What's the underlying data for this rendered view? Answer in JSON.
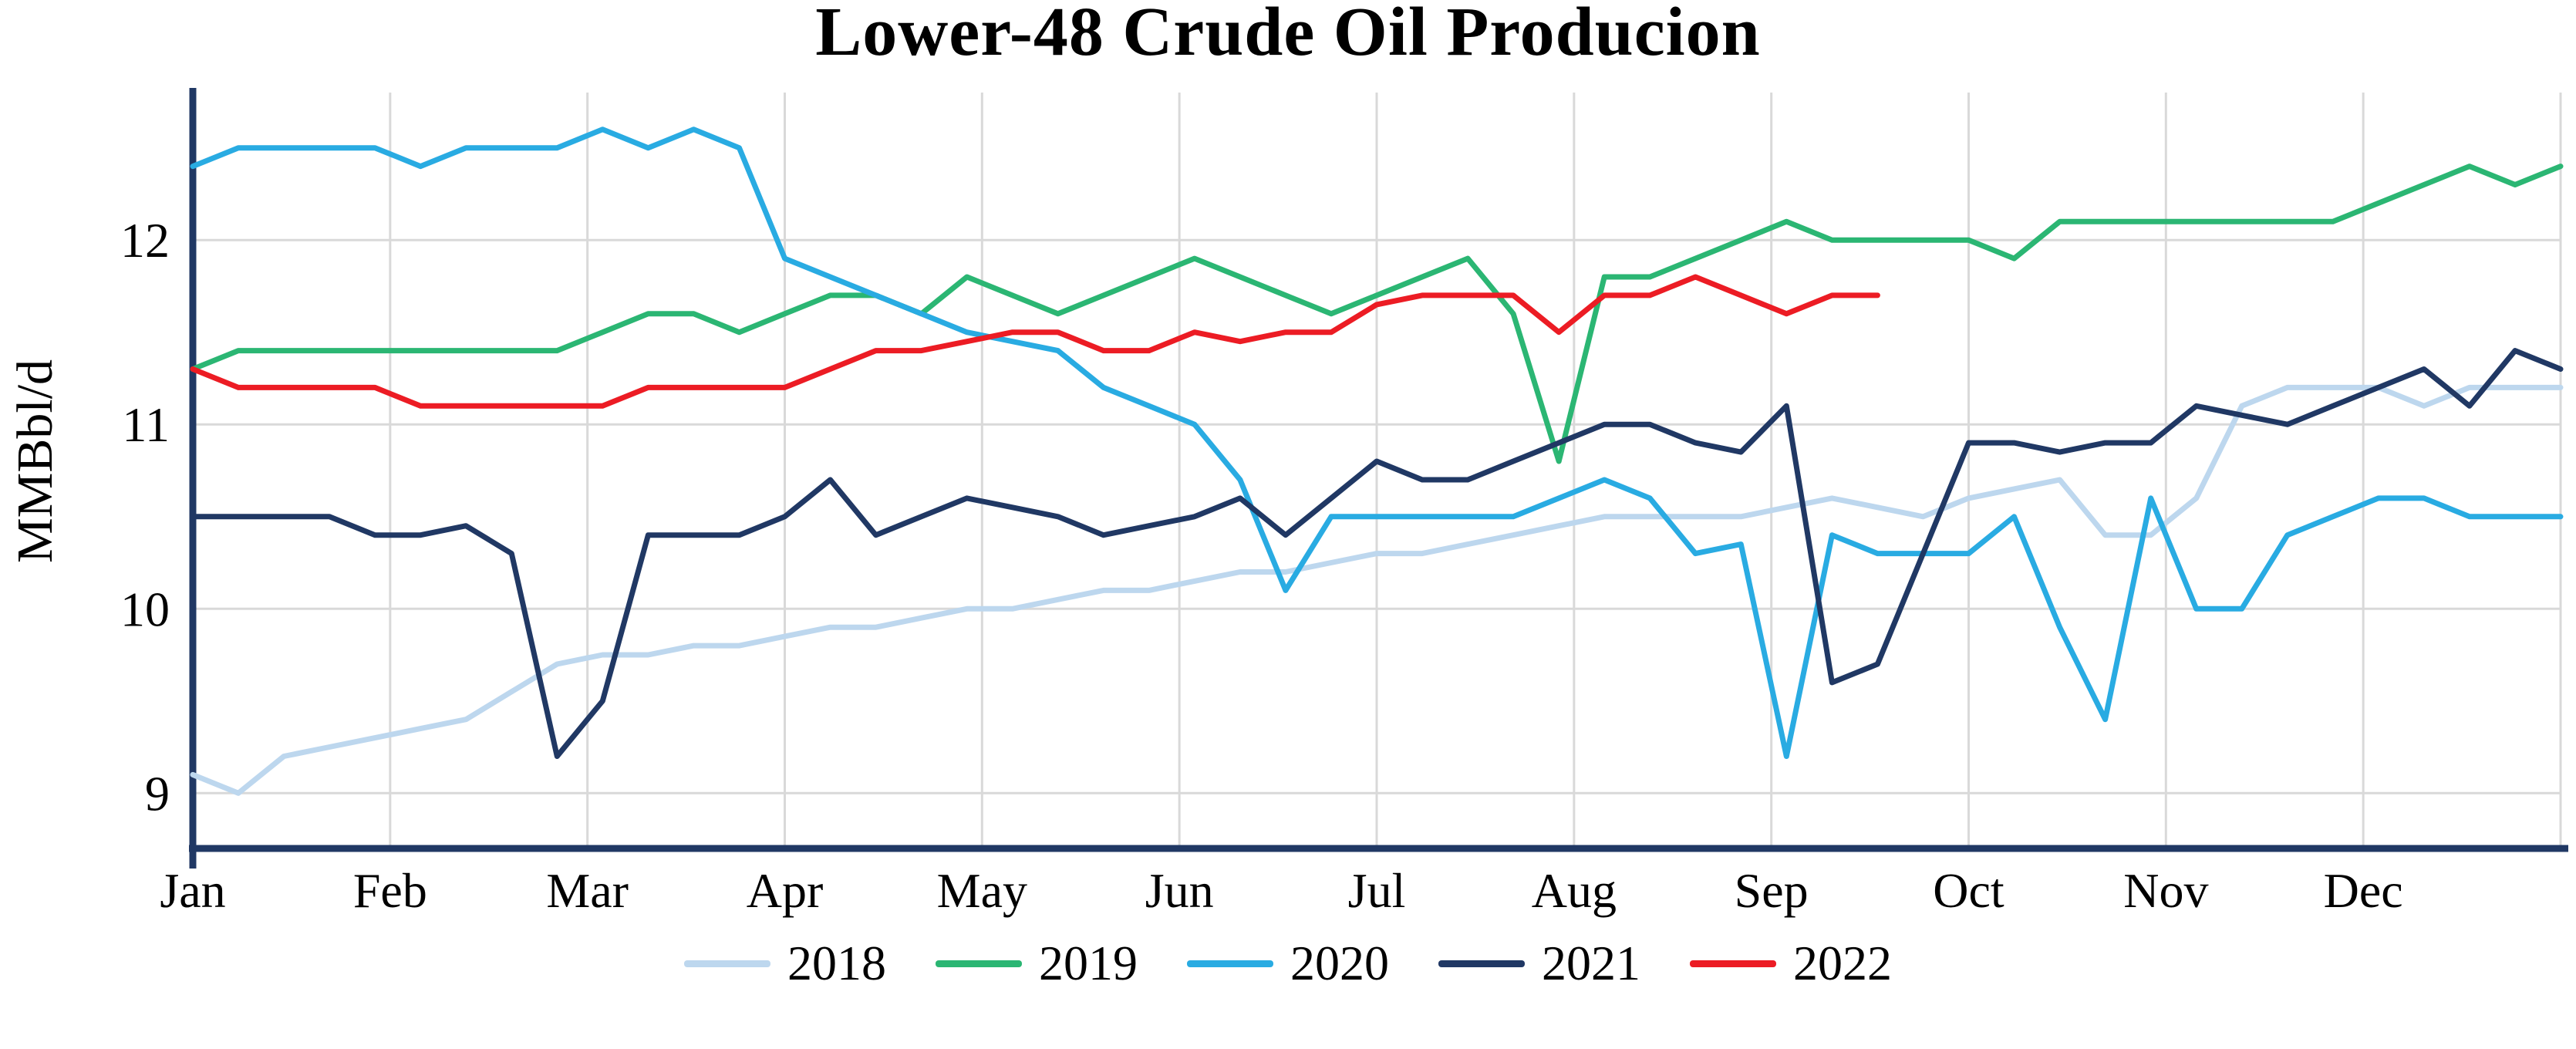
{
  "chart_data": {
    "type": "line",
    "title": "Lower-48 Crude Oil Producion",
    "ylabel": "MMBbl/d",
    "xlabel": "",
    "categories": [
      "Jan",
      "Feb",
      "Mar",
      "Apr",
      "May",
      "Jun",
      "Jul",
      "Aug",
      "Sep",
      "Oct",
      "Nov",
      "Dec"
    ],
    "x_unit": "weekly observations, week-of-year 0-52",
    "yticks": [
      9,
      10,
      11,
      12
    ],
    "ylim": [
      8.7,
      12.8
    ],
    "xlim_weeks": [
      0,
      52
    ],
    "grid": true,
    "legend_position": "bottom-center",
    "colors": {
      "axis": "#203864",
      "grid": "#d9d9d9",
      "text": "#000000",
      "background": "#ffffff"
    },
    "series": [
      {
        "name": "2018",
        "color": "#bdd7ee",
        "values": [
          9.1,
          9.0,
          9.2,
          9.25,
          9.3,
          9.35,
          9.4,
          9.55,
          9.7,
          9.75,
          9.75,
          9.8,
          9.8,
          9.85,
          9.9,
          9.9,
          9.95,
          10.0,
          10.0,
          10.05,
          10.1,
          10.1,
          10.15,
          10.2,
          10.2,
          10.25,
          10.3,
          10.3,
          10.35,
          10.4,
          10.45,
          10.5,
          10.5,
          10.5,
          10.5,
          10.55,
          10.6,
          10.55,
          10.5,
          10.6,
          10.65,
          10.7,
          10.4,
          10.4,
          10.6,
          11.1,
          11.2,
          11.2,
          11.2,
          11.1,
          11.2,
          11.2,
          11.2
        ]
      },
      {
        "name": "2019",
        "color": "#2bb673",
        "values": [
          11.3,
          11.4,
          11.4,
          11.4,
          11.4,
          11.4,
          11.4,
          11.4,
          11.4,
          11.5,
          11.6,
          11.6,
          11.5,
          11.6,
          11.7,
          11.7,
          11.6,
          11.8,
          11.7,
          11.6,
          11.7,
          11.8,
          11.9,
          11.8,
          11.7,
          11.6,
          11.7,
          11.8,
          11.9,
          11.6,
          10.8,
          11.8,
          11.8,
          11.9,
          12.0,
          12.1,
          12.0,
          12.0,
          12.0,
          12.0,
          11.9,
          12.1,
          12.1,
          12.1,
          12.1,
          12.1,
          12.1,
          12.1,
          12.2,
          12.3,
          12.4,
          12.3,
          12.4
        ]
      },
      {
        "name": "2020",
        "color": "#29abe2",
        "values": [
          12.4,
          12.5,
          12.5,
          12.5,
          12.5,
          12.4,
          12.5,
          12.5,
          12.5,
          12.6,
          12.5,
          12.6,
          12.5,
          11.9,
          11.8,
          11.7,
          11.6,
          11.5,
          11.45,
          11.4,
          11.2,
          11.1,
          11.0,
          10.7,
          10.1,
          10.5,
          10.5,
          10.5,
          10.5,
          10.5,
          10.6,
          10.7,
          10.6,
          10.3,
          10.35,
          9.2,
          10.4,
          10.3,
          10.3,
          10.3,
          10.5,
          9.9,
          9.4,
          10.6,
          10.0,
          10.0,
          10.4,
          10.5,
          10.6,
          10.6,
          10.5,
          10.5,
          10.5
        ]
      },
      {
        "name": "2021",
        "color": "#203864",
        "values": [
          10.5,
          10.5,
          10.5,
          10.5,
          10.4,
          10.4,
          10.45,
          10.3,
          9.2,
          9.5,
          10.4,
          10.4,
          10.4,
          10.5,
          10.7,
          10.4,
          10.5,
          10.6,
          10.55,
          10.5,
          10.4,
          10.45,
          10.5,
          10.6,
          10.4,
          10.6,
          10.8,
          10.7,
          10.7,
          10.8,
          10.9,
          11.0,
          11.0,
          10.9,
          10.85,
          11.1,
          9.6,
          9.7,
          10.3,
          10.9,
          10.9,
          10.85,
          10.9,
          10.9,
          11.1,
          11.05,
          11.0,
          11.1,
          11.2,
          11.3,
          11.1,
          11.4,
          11.3
        ]
      },
      {
        "name": "2022",
        "color": "#ec1c24",
        "values": [
          11.3,
          11.2,
          11.2,
          11.2,
          11.2,
          11.1,
          11.1,
          11.1,
          11.1,
          11.1,
          11.2,
          11.2,
          11.2,
          11.2,
          11.3,
          11.4,
          11.4,
          11.45,
          11.5,
          11.5,
          11.4,
          11.4,
          11.5,
          11.45,
          11.5,
          11.5,
          11.65,
          11.7,
          11.7,
          11.7,
          11.5,
          11.7,
          11.7,
          11.8,
          11.7,
          11.6,
          11.7,
          11.7
        ]
      }
    ]
  }
}
